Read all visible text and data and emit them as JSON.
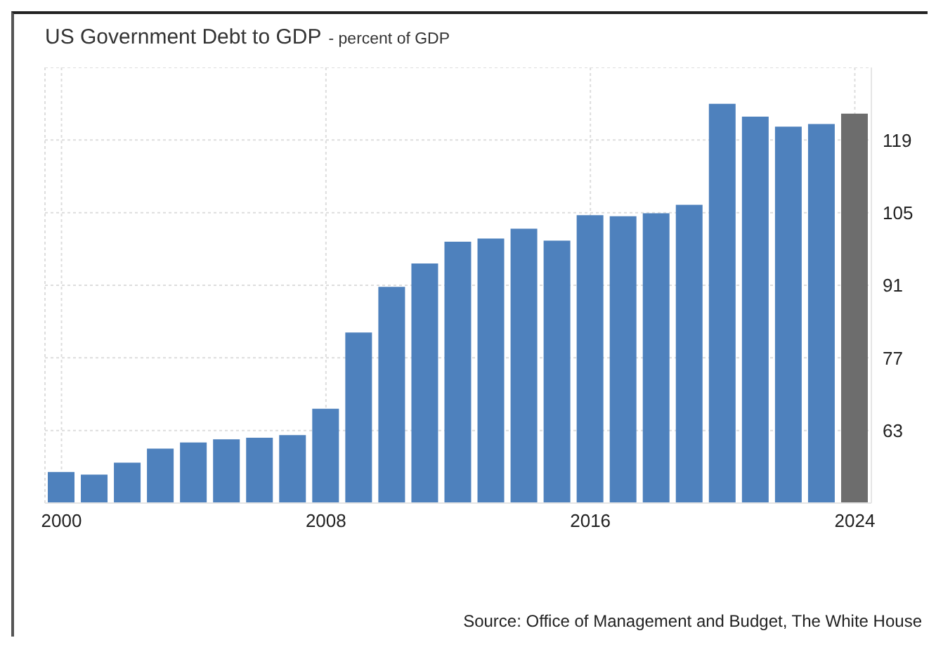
{
  "chart_data": {
    "type": "bar",
    "title": "US Government Debt to GDP",
    "subtitle": "- percent of GDP",
    "categories": [
      "2000",
      null,
      null,
      null,
      null,
      null,
      null,
      null,
      "2008",
      null,
      null,
      null,
      null,
      null,
      null,
      null,
      "2016",
      null,
      null,
      null,
      null,
      null,
      null,
      null,
      "2024"
    ],
    "values": [
      55.0,
      54.5,
      56.8,
      59.5,
      60.7,
      61.3,
      61.6,
      62.1,
      67.2,
      81.9,
      90.7,
      95.2,
      99.4,
      100.0,
      101.9,
      99.6,
      104.5,
      104.3,
      104.9,
      106.5,
      126.0,
      123.5,
      121.6,
      122.1,
      124.1
    ],
    "colors": [
      "#4e81bd",
      "#4e81bd",
      "#4e81bd",
      "#4e81bd",
      "#4e81bd",
      "#4e81bd",
      "#4e81bd",
      "#4e81bd",
      "#4e81bd",
      "#4e81bd",
      "#4e81bd",
      "#4e81bd",
      "#4e81bd",
      "#4e81bd",
      "#4e81bd",
      "#4e81bd",
      "#4e81bd",
      "#4e81bd",
      "#4e81bd",
      "#4e81bd",
      "#4e81bd",
      "#4e81bd",
      "#4e81bd",
      "#4e81bd",
      "#6d6d6d"
    ],
    "ylim": [
      49,
      133
    ],
    "yticks": [
      63,
      77,
      91,
      105,
      119
    ],
    "grid": true,
    "annotations": [
      "Source: Office of Management and Budget, The White House"
    ]
  }
}
